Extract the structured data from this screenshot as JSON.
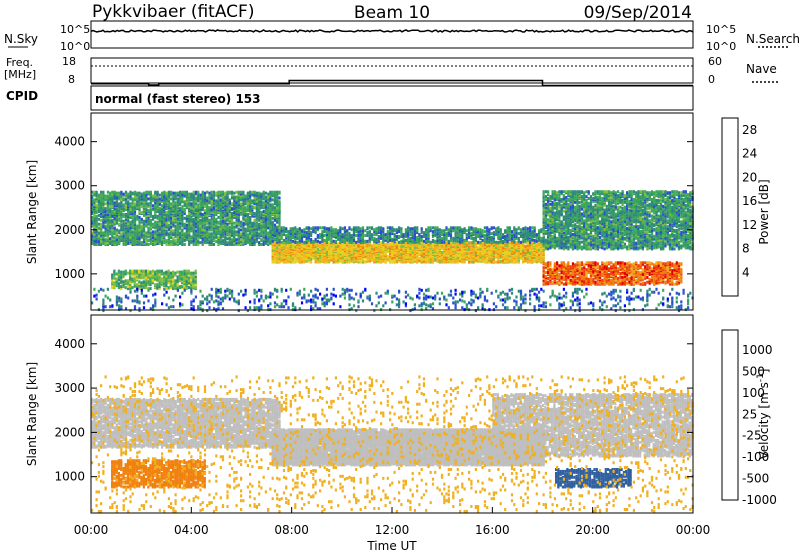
{
  "header": {
    "station": "Pykkvibaer (fitACF)",
    "beam": "Beam 10",
    "date": "09/Sep/2014"
  },
  "nsky_panel": {
    "label": "N.Sky",
    "search_label": "N.Search",
    "left_ticks": [
      "10^5",
      "10^0"
    ],
    "right_ticks": [
      "10^5",
      "10^0"
    ]
  },
  "freq_panel": {
    "label_line1": "Freq.",
    "label_line2": "[MHz]",
    "left_ticks": [
      "18",
      "8"
    ],
    "right_ticks": [
      "60",
      "0"
    ],
    "nave_label": "Nave",
    "freq_steps": [
      {
        "t_start": 0.0,
        "t_end": 2.3,
        "mhz": 9.3
      },
      {
        "t_start": 2.3,
        "t_end": 2.7,
        "mhz": 8.8
      },
      {
        "t_start": 2.7,
        "t_end": 7.9,
        "mhz": 9.3
      },
      {
        "t_start": 7.9,
        "t_end": 18.0,
        "mhz": 10.6
      },
      {
        "t_start": 18.0,
        "t_end": 24.0,
        "mhz": 8.6
      }
    ]
  },
  "cpid": {
    "label": "CPID",
    "text": "normal (fast stereo) 153"
  },
  "time_axis": {
    "title": "Time UT",
    "ticks": [
      "00:00",
      "04:00",
      "08:00",
      "12:00",
      "16:00",
      "20:00",
      "00:00"
    ]
  },
  "chart_data": [
    {
      "type": "heatmap",
      "name": "power",
      "ylabel": "Slant Range [km]",
      "y_ticks": [
        1000,
        2000,
        3000,
        4000
      ],
      "ylim": [
        180,
        4650
      ],
      "xlim": [
        0,
        24
      ],
      "colorbar": {
        "label": "Power [dB]",
        "ticks": [
          4,
          8,
          12,
          16,
          20,
          24,
          28
        ],
        "colors": [
          "#0000ff",
          "#2a4fd0",
          "#2f8a7a",
          "#3ca85a",
          "#7fbf3f",
          "#e8d020",
          "#f0b020",
          "#f08010",
          "#f04010",
          "#e00000"
        ],
        "range": [
          0,
          30
        ]
      },
      "regions": [
        {
          "t0": 0.0,
          "t1": 7.5,
          "r0": 1700,
          "r1": 2900,
          "value": 9,
          "density": 0.6
        },
        {
          "t0": 0.8,
          "t1": 4.2,
          "r0": 700,
          "r1": 1100,
          "value": 12,
          "density": 0.55
        },
        {
          "t0": 7.2,
          "t1": 18.0,
          "r0": 1300,
          "r1": 1750,
          "value": 18,
          "density": 0.8
        },
        {
          "t0": 7.2,
          "t1": 18.0,
          "r0": 1750,
          "r1": 2100,
          "value": 8,
          "density": 0.45
        },
        {
          "t0": 18.0,
          "t1": 24.0,
          "r0": 1600,
          "r1": 2900,
          "value": 9,
          "density": 0.6
        },
        {
          "t0": 18.0,
          "t1": 23.5,
          "r0": 800,
          "r1": 1300,
          "value": 24,
          "density": 0.6
        },
        {
          "t0": 0.0,
          "t1": 24.0,
          "r0": 200,
          "r1": 700,
          "value": 6,
          "density": 0.12
        }
      ]
    },
    {
      "type": "heatmap",
      "name": "velocity",
      "ylabel": "Slant Range [km]",
      "y_ticks": [
        1000,
        2000,
        3000,
        4000
      ],
      "ylim": [
        180,
        4650
      ],
      "xlim": [
        0,
        24
      ],
      "colorbar": {
        "label": "Velocity [m s^-1]",
        "ticks": [
          "1000",
          "500",
          "100",
          "25",
          "-25",
          "-100",
          "-500",
          "-1000"
        ],
        "colors": [
          "#1030c0",
          "#3060a0",
          "#2f7a4a",
          "#3c9a4a",
          "#66c040",
          "#bfbfbf",
          "#bfbfbf",
          "#f0b020",
          "#f08010",
          "#f04010",
          "#e00000"
        ]
      },
      "regions": [
        {
          "t0": 0.0,
          "t1": 7.5,
          "r0": 1700,
          "r1": 2800,
          "value": 0,
          "density": 0.6
        },
        {
          "t0": 0.8,
          "t1": 4.5,
          "r0": 800,
          "r1": 1400,
          "value": -300,
          "density": 0.55
        },
        {
          "t0": 7.2,
          "t1": 18.0,
          "r0": 1300,
          "r1": 2100,
          "value": 0,
          "density": 0.85
        },
        {
          "t0": 16.0,
          "t1": 24.0,
          "r0": 1500,
          "r1": 2900,
          "value": 0,
          "density": 0.55
        },
        {
          "t0": 18.5,
          "t1": 21.5,
          "r0": 800,
          "r1": 1200,
          "value": 400,
          "density": 0.5
        },
        {
          "t0": 0.0,
          "t1": 24.0,
          "r0": 250,
          "r1": 3300,
          "value": -60,
          "density": 0.05
        }
      ]
    }
  ]
}
